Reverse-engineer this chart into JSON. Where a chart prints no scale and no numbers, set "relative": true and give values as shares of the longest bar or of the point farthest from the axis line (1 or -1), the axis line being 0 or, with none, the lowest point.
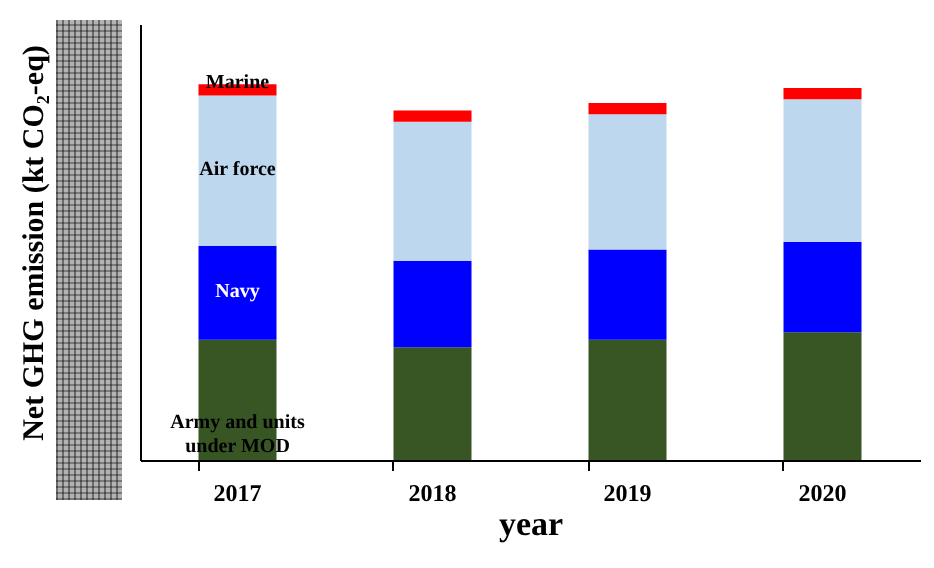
{
  "chart_data": {
    "type": "bar",
    "stacked": true,
    "relative": true,
    "xlabel": "year",
    "ylabel": "Net GHG emission (kt CO₂-eq)",
    "categories": [
      "2017",
      "2018",
      "2019",
      "2020"
    ],
    "series": [
      {
        "name": "Army and units under MOD",
        "color": "#375623",
        "values": [
          0.32,
          0.3,
          0.32,
          0.34
        ]
      },
      {
        "name": "Navy",
        "color": "#0000ff",
        "values": [
          0.25,
          0.23,
          0.24,
          0.24
        ]
      },
      {
        "name": "Air force",
        "color": "#bdd7ee",
        "values": [
          0.4,
          0.37,
          0.36,
          0.38
        ]
      },
      {
        "name": "Marine",
        "color": "#ff0000",
        "values": [
          0.03,
          0.03,
          0.03,
          0.03
        ]
      }
    ],
    "grid": false
  }
}
